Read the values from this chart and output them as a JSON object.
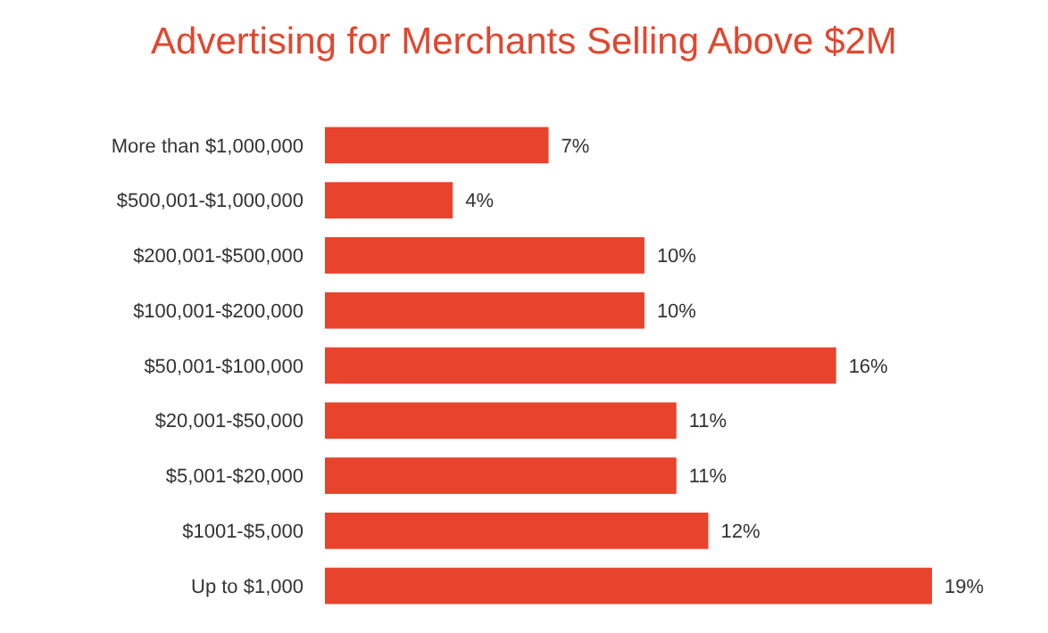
{
  "chart_data": {
    "type": "bar",
    "orientation": "horizontal",
    "title": "Advertising for Merchants Selling Above $2M",
    "categories": [
      "More than $1,000,000",
      "$500,001-$1,000,000",
      "$200,001-$500,000",
      "$100,001-$200,000",
      "$50,001-$100,000",
      "$20,001-$50,000",
      "$5,001-$20,000",
      "$1001-$5,000",
      "Up to $1,000"
    ],
    "values": [
      7,
      4,
      10,
      10,
      16,
      11,
      11,
      12,
      19
    ],
    "value_labels": [
      "7%",
      "4%",
      "10%",
      "10%",
      "16%",
      "11%",
      "11%",
      "12%",
      "19%"
    ],
    "color": "#e8432d"
  }
}
